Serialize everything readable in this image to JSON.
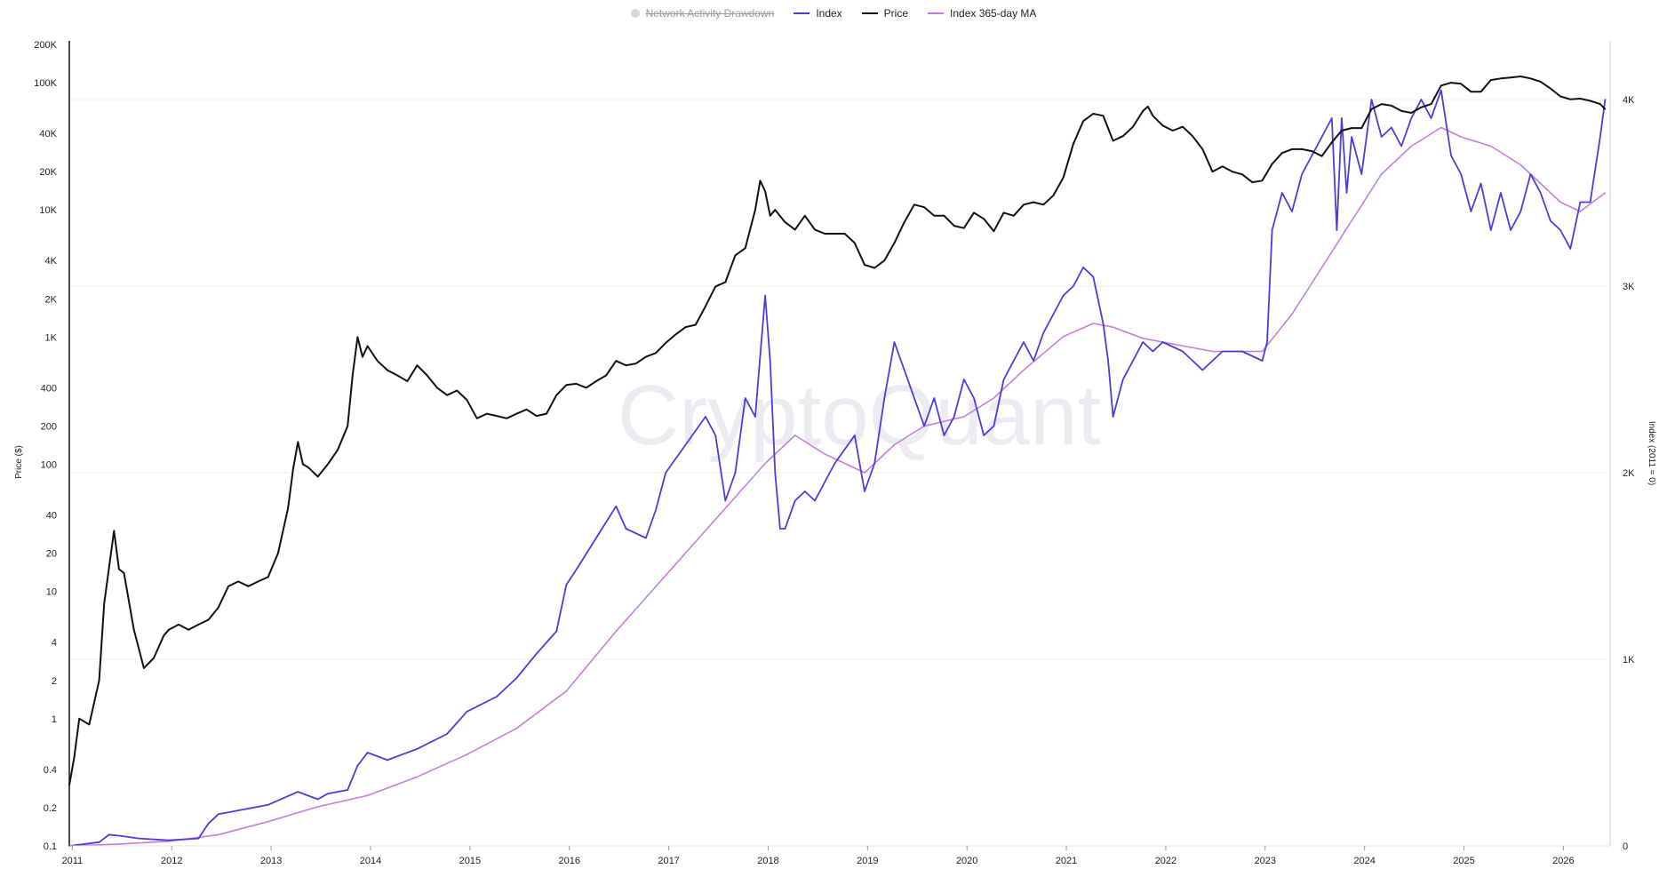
{
  "legend": {
    "items": [
      {
        "label": "Network Activity Drawdown",
        "color": "#d5d5dc",
        "marker": "dot",
        "disabled": true
      },
      {
        "label": "Index",
        "color": "#4a3ddb",
        "marker": "line",
        "disabled": false
      },
      {
        "label": "Price",
        "color": "#111111",
        "marker": "line",
        "disabled": false
      },
      {
        "label": "Index 365-day MA",
        "color": "#c77ddc",
        "marker": "line",
        "disabled": false
      }
    ]
  },
  "watermark": "CryptoQuant",
  "chart_data": {
    "type": "line",
    "xlabel": "",
    "x_ticks": [
      "2011",
      "2012",
      "2013",
      "2014",
      "2015",
      "2016",
      "2017",
      "2018",
      "2019",
      "2020",
      "2021",
      "2022",
      "2023",
      "2024",
      "2025",
      "2026"
    ],
    "x_range": [
      2011.0,
      2026.5
    ],
    "y_left": {
      "label": "Price ($)",
      "scale": "log",
      "range": [
        0.1,
        200000
      ],
      "ticks": [
        0.1,
        0.2,
        0.4,
        1,
        2,
        4,
        10,
        20,
        40,
        100,
        200,
        400,
        1000,
        2000,
        4000,
        10000,
        20000,
        40000,
        100000,
        200000
      ],
      "tick_labels": [
        "0.1",
        "0.2",
        "0.4",
        "1",
        "2",
        "4",
        "10",
        "20",
        "40",
        "100",
        "200",
        "400",
        "1K",
        "2K",
        "4K",
        "10K",
        "20K",
        "40K",
        "100K",
        "200K"
      ]
    },
    "y_right": {
      "label": "Index (2011 = 0)",
      "scale": "linear",
      "range": [
        0,
        4000
      ],
      "ticks": [
        0,
        1000,
        2000,
        3000,
        4000
      ],
      "tick_labels": [
        "0",
        "1K",
        "2K",
        "3K",
        "4K"
      ]
    },
    "grid": true,
    "legend_position": "top-center",
    "series": [
      {
        "name": "Price",
        "axis": "left",
        "color": "#111111",
        "x": [
          2011.0,
          2011.05,
          2011.1,
          2011.2,
          2011.3,
          2011.35,
          2011.45,
          2011.5,
          2011.55,
          2011.65,
          2011.75,
          2011.85,
          2011.95,
          2012.0,
          2012.1,
          2012.2,
          2012.3,
          2012.4,
          2012.5,
          2012.6,
          2012.7,
          2012.8,
          2012.9,
          2013.0,
          2013.1,
          2013.2,
          2013.25,
          2013.3,
          2013.35,
          2013.4,
          2013.5,
          2013.6,
          2013.7,
          2013.8,
          2013.85,
          2013.9,
          2013.95,
          2014.0,
          2014.1,
          2014.2,
          2014.3,
          2014.4,
          2014.5,
          2014.6,
          2014.7,
          2014.8,
          2014.9,
          2015.0,
          2015.1,
          2015.2,
          2015.3,
          2015.4,
          2015.5,
          2015.6,
          2015.7,
          2015.8,
          2015.9,
          2016.0,
          2016.1,
          2016.2,
          2016.3,
          2016.4,
          2016.5,
          2016.6,
          2016.7,
          2016.8,
          2016.9,
          2017.0,
          2017.1,
          2017.2,
          2017.3,
          2017.4,
          2017.5,
          2017.6,
          2017.7,
          2017.8,
          2017.9,
          2017.95,
          2018.0,
          2018.05,
          2018.1,
          2018.2,
          2018.3,
          2018.4,
          2018.5,
          2018.6,
          2018.7,
          2018.8,
          2018.9,
          2019.0,
          2019.1,
          2019.2,
          2019.3,
          2019.4,
          2019.5,
          2019.6,
          2019.7,
          2019.8,
          2019.9,
          2020.0,
          2020.1,
          2020.2,
          2020.3,
          2020.4,
          2020.5,
          2020.6,
          2020.7,
          2020.8,
          2020.9,
          2021.0,
          2021.1,
          2021.2,
          2021.3,
          2021.4,
          2021.5,
          2021.6,
          2021.7,
          2021.8,
          2021.85,
          2021.9,
          2022.0,
          2022.1,
          2022.2,
          2022.3,
          2022.4,
          2022.5,
          2022.6,
          2022.7,
          2022.8,
          2022.9,
          2023.0,
          2023.1,
          2023.2,
          2023.3,
          2023.4,
          2023.5,
          2023.6,
          2023.7,
          2023.8,
          2023.9,
          2024.0,
          2024.1,
          2024.2,
          2024.3,
          2024.4,
          2024.5,
          2024.6,
          2024.7,
          2024.8,
          2024.9,
          2025.0,
          2025.1,
          2025.2,
          2025.3,
          2025.4,
          2025.5,
          2025.6,
          2025.7,
          2025.8,
          2025.9,
          2026.0,
          2026.1,
          2026.2,
          2026.3,
          2026.4,
          2026.45
        ],
        "y": [
          0.3,
          0.5,
          1.0,
          0.9,
          2.0,
          8.0,
          30,
          15,
          14,
          5,
          2.5,
          3.0,
          4.5,
          5.0,
          5.5,
          5.0,
          5.5,
          6.0,
          7.5,
          11,
          12,
          11,
          12,
          13,
          20,
          45,
          90,
          150,
          100,
          95,
          80,
          100,
          130,
          200,
          500,
          1000,
          700,
          850,
          650,
          550,
          500,
          450,
          600,
          500,
          400,
          350,
          380,
          320,
          230,
          250,
          240,
          230,
          250,
          270,
          240,
          250,
          350,
          420,
          430,
          400,
          450,
          500,
          650,
          600,
          620,
          700,
          750,
          900,
          1050,
          1200,
          1250,
          1750,
          2500,
          2700,
          4400,
          5000,
          10000,
          17000,
          14000,
          9000,
          10000,
          8000,
          7000,
          9000,
          7000,
          6500,
          6500,
          6500,
          5500,
          3700,
          3500,
          4000,
          5500,
          8000,
          11000,
          10500,
          9000,
          9000,
          7500,
          7200,
          9500,
          8500,
          6800,
          9500,
          9000,
          11000,
          11500,
          11000,
          13000,
          18000,
          33000,
          50000,
          57000,
          55000,
          35000,
          38000,
          45000,
          60000,
          65000,
          55000,
          46000,
          42000,
          45000,
          38000,
          30000,
          20000,
          22000,
          20000,
          19000,
          16500,
          17000,
          23000,
          28000,
          30000,
          30000,
          29000,
          26500,
          34000,
          42000,
          44000,
          44000,
          62000,
          68000,
          66000,
          60000,
          58000,
          64000,
          68000,
          95000,
          100000,
          98000,
          85000,
          85000,
          105000,
          108000,
          110000,
          112000,
          108000,
          102000,
          90000,
          78000,
          74000,
          75000,
          72000,
          68000,
          62000
        ]
      },
      {
        "name": "Index",
        "axis": "right",
        "color": "#4a3ddb",
        "x": [
          2011.0,
          2011.3,
          2011.4,
          2011.5,
          2011.7,
          2012.0,
          2012.3,
          2012.4,
          2012.5,
          2012.8,
          2013.0,
          2013.3,
          2013.5,
          2013.6,
          2013.8,
          2013.9,
          2014.0,
          2014.2,
          2014.5,
          2014.8,
          2015.0,
          2015.3,
          2015.5,
          2015.7,
          2015.9,
          2016.0,
          2016.1,
          2016.3,
          2016.5,
          2016.6,
          2016.8,
          2016.9,
          2017.0,
          2017.2,
          2017.4,
          2017.5,
          2017.6,
          2017.7,
          2017.8,
          2017.9,
          2018.0,
          2018.05,
          2018.1,
          2018.15,
          2018.2,
          2018.3,
          2018.4,
          2018.5,
          2018.7,
          2018.9,
          2019.0,
          2019.1,
          2019.2,
          2019.3,
          2019.4,
          2019.5,
          2019.6,
          2019.7,
          2019.8,
          2019.9,
          2020.0,
          2020.1,
          2020.2,
          2020.3,
          2020.4,
          2020.5,
          2020.6,
          2020.7,
          2020.8,
          2020.9,
          2021.0,
          2021.1,
          2021.2,
          2021.3,
          2021.4,
          2021.45,
          2021.5,
          2021.6,
          2021.7,
          2021.8,
          2021.9,
          2022.0,
          2022.2,
          2022.4,
          2022.6,
          2022.8,
          2023.0,
          2023.05,
          2023.1,
          2023.2,
          2023.3,
          2023.4,
          2023.5,
          2023.6,
          2023.7,
          2023.75,
          2023.8,
          2023.85,
          2023.9,
          2024.0,
          2024.1,
          2024.2,
          2024.3,
          2024.4,
          2024.5,
          2024.6,
          2024.7,
          2024.8,
          2024.9,
          2025.0,
          2025.1,
          2025.2,
          2025.3,
          2025.4,
          2025.5,
          2025.6,
          2025.7,
          2025.8,
          2025.9,
          2026.0,
          2026.1,
          2026.2,
          2026.3,
          2026.4,
          2026.45
        ],
        "y": [
          0,
          20,
          60,
          55,
          40,
          30,
          40,
          120,
          170,
          200,
          220,
          290,
          250,
          280,
          300,
          430,
          500,
          460,
          520,
          600,
          720,
          800,
          900,
          1030,
          1150,
          1400,
          1480,
          1650,
          1820,
          1700,
          1650,
          1800,
          2000,
          2150,
          2300,
          2200,
          1850,
          2000,
          2400,
          2300,
          2950,
          2600,
          2000,
          1700,
          1700,
          1850,
          1900,
          1850,
          2050,
          2200,
          1900,
          2050,
          2400,
          2700,
          2550,
          2400,
          2250,
          2400,
          2200,
          2300,
          2500,
          2400,
          2200,
          2250,
          2500,
          2600,
          2700,
          2600,
          2750,
          2850,
          2950,
          3000,
          3100,
          3050,
          2800,
          2600,
          2300,
          2500,
          2600,
          2700,
          2650,
          2700,
          2650,
          2550,
          2650,
          2650,
          2600,
          2700,
          3300,
          3500,
          3400,
          3600,
          3700,
          3800,
          3900,
          3300,
          3900,
          3500,
          3800,
          3600,
          4000,
          3800,
          3850,
          3750,
          3900,
          4000,
          3900,
          4050,
          3700,
          3600,
          3400,
          3550,
          3300,
          3500,
          3300,
          3400,
          3600,
          3500,
          3350,
          3300,
          3200,
          3450,
          3450,
          3800,
          4000
        ]
      },
      {
        "name": "Index 365-day MA",
        "axis": "right",
        "color": "#c77ddc",
        "x": [
          2011.0,
          2011.5,
          2012.0,
          2012.5,
          2013.0,
          2013.5,
          2014.0,
          2014.5,
          2015.0,
          2015.5,
          2016.0,
          2016.5,
          2017.0,
          2017.5,
          2018.0,
          2018.3,
          2018.6,
          2019.0,
          2019.3,
          2019.6,
          2020.0,
          2020.3,
          2020.6,
          2021.0,
          2021.3,
          2021.5,
          2021.8,
          2022.0,
          2022.5,
          2023.0,
          2023.3,
          2023.6,
          2023.9,
          2024.2,
          2024.5,
          2024.8,
          2025.0,
          2025.3,
          2025.6,
          2025.9,
          2026.0,
          2026.2,
          2026.45
        ],
        "y": [
          0,
          10,
          25,
          60,
          130,
          210,
          270,
          370,
          490,
          630,
          830,
          1150,
          1450,
          1750,
          2050,
          2200,
          2100,
          2000,
          2150,
          2250,
          2300,
          2400,
          2550,
          2730,
          2800,
          2780,
          2720,
          2700,
          2650,
          2650,
          2850,
          3100,
          3350,
          3600,
          3750,
          3850,
          3800,
          3750,
          3650,
          3500,
          3450,
          3400,
          3500
        ]
      }
    ]
  },
  "axes": {
    "left_title": "Price ($)",
    "right_title": "Index (2011 = 0)"
  }
}
